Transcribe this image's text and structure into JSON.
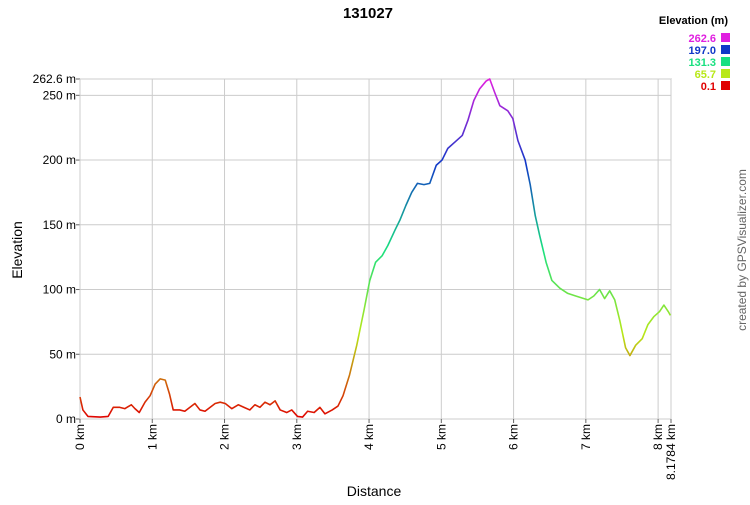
{
  "chart_data": {
    "type": "line",
    "title": "131027",
    "xlabel": "Distance",
    "ylabel": "Elevation",
    "credit": "created by GPSVisualizer.com",
    "xlim": [
      0,
      8.1784
    ],
    "ylim": [
      0,
      262.6
    ],
    "xticks": [
      {
        "value": 0,
        "label": "0 km"
      },
      {
        "value": 1,
        "label": "1 km"
      },
      {
        "value": 2,
        "label": "2 km"
      },
      {
        "value": 3,
        "label": "3 km"
      },
      {
        "value": 4,
        "label": "4 km"
      },
      {
        "value": 5,
        "label": "5 km"
      },
      {
        "value": 6,
        "label": "6 km"
      },
      {
        "value": 7,
        "label": "7 km"
      },
      {
        "value": 8,
        "label": "8 km"
      },
      {
        "value": 8.1784,
        "label": "8.1784 km"
      }
    ],
    "yticks": [
      {
        "value": 0,
        "label": "0 m"
      },
      {
        "value": 50,
        "label": "50 m"
      },
      {
        "value": 100,
        "label": "100 m"
      },
      {
        "value": 150,
        "label": "150 m"
      },
      {
        "value": 200,
        "label": "200 m"
      },
      {
        "value": 250,
        "label": "250 m"
      },
      {
        "value": 262.6,
        "label": "262.6 m"
      }
    ],
    "grid": true,
    "legend": {
      "title": "Elevation (m)",
      "position": "top-right",
      "stops": [
        {
          "value": 262.6,
          "label": "262.6",
          "color": "#e020e0"
        },
        {
          "value": 197,
          "label": "197.0",
          "color": "#1038c8"
        },
        {
          "value": 131.3,
          "label": "131.3",
          "color": "#18e080"
        },
        {
          "value": 65.7,
          "label": "65.7",
          "color": "#b8e818"
        },
        {
          "value": 0.1,
          "label": "0.1",
          "color": "#e00000"
        }
      ]
    },
    "x": [
      0,
      0.04,
      0.11,
      0.28,
      0.39,
      0.46,
      0.55,
      0.62,
      0.71,
      0.76,
      0.82,
      0.9,
      0.97,
      1.04,
      1.11,
      1.18,
      1.24,
      1.29,
      1.38,
      1.45,
      1.52,
      1.59,
      1.66,
      1.73,
      1.8,
      1.87,
      1.94,
      2.01,
      2.1,
      2.19,
      2.27,
      2.35,
      2.42,
      2.49,
      2.56,
      2.63,
      2.7,
      2.77,
      2.86,
      2.93,
      3.01,
      3.08,
      3.15,
      3.24,
      3.32,
      3.39,
      3.49,
      3.57,
      3.64,
      3.73,
      3.83,
      3.93,
      4.01,
      4.09,
      4.18,
      4.26,
      4.36,
      4.43,
      4.51,
      4.59,
      4.67,
      4.76,
      4.84,
      4.93,
      5.01,
      5.09,
      5.19,
      5.29,
      5.37,
      5.45,
      5.53,
      5.62,
      5.67,
      5.74,
      5.81,
      5.92,
      5.99,
      6.06,
      6.16,
      6.23,
      6.3,
      6.36,
      6.45,
      6.53,
      6.64,
      6.75,
      6.86,
      7.03,
      7.11,
      7.19,
      7.26,
      7.33,
      7.4,
      7.47,
      7.55,
      7.61,
      7.69,
      7.78,
      7.86,
      7.94,
      8.02,
      8.08,
      8.14,
      8.17
    ],
    "series": [
      {
        "values": [
          17,
          7,
          2,
          1.5,
          2,
          9,
          9,
          8,
          11,
          8,
          5,
          13,
          18,
          27,
          31,
          30,
          19,
          7,
          7,
          6,
          9,
          12,
          7,
          6,
          9,
          12,
          13,
          12,
          8,
          11,
          9,
          7,
          11,
          9,
          13,
          11,
          14,
          7,
          5,
          7,
          2,
          1.5,
          6,
          5,
          9,
          4,
          7,
          10,
          18,
          34,
          57,
          84,
          107,
          121,
          126,
          134,
          146,
          154,
          165,
          175,
          182,
          181,
          182,
          196,
          200,
          209,
          214,
          219,
          231,
          246,
          255,
          261,
          262.6,
          252,
          242,
          238,
          232,
          215,
          200,
          181,
          157,
          142,
          121,
          107,
          101,
          97,
          95,
          92,
          95,
          100,
          93,
          99,
          92,
          76,
          55,
          49,
          57,
          62,
          73,
          79,
          83,
          88,
          83,
          80
        ]
      }
    ]
  }
}
